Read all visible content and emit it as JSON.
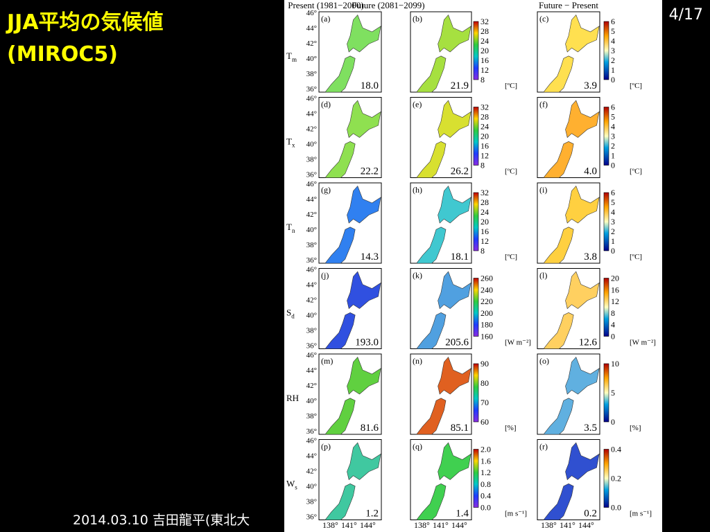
{
  "header": {
    "title": "JJA平均の気候値",
    "subtitle": "(MIROC5)",
    "page": "4/17"
  },
  "footer": "2014.03.10 吉田龍平(東北大",
  "figure": {
    "columns": [
      "Present (1981−2000)",
      "Future (2081−2099)",
      "Future − Present"
    ],
    "lat_labels": [
      "46°",
      "44°",
      "42°",
      "40°",
      "38°",
      "36°"
    ],
    "lon_labels": [
      "138°",
      "141°",
      "144°"
    ],
    "rows": [
      {
        "label": "T",
        "sub": "m",
        "panels": [
          {
            "letter": "(a)",
            "value": "18.0"
          },
          {
            "letter": "(b)",
            "value": "21.9"
          },
          {
            "letter": "(c)",
            "value": "3.9"
          }
        ],
        "bar1": {
          "ticks": [
            "32",
            "28",
            "24",
            "20",
            "16",
            "12",
            "8"
          ],
          "unit": "[ºC]"
        },
        "bar2": {
          "ticks": [
            "6",
            "5",
            "4",
            "3",
            "2",
            "1",
            "0"
          ],
          "unit": "[ºC]"
        }
      },
      {
        "label": "T",
        "sub": "x",
        "panels": [
          {
            "letter": "(d)",
            "value": "22.2"
          },
          {
            "letter": "(e)",
            "value": "26.2"
          },
          {
            "letter": "(f)",
            "value": "4.0"
          }
        ],
        "bar1": {
          "ticks": [
            "32",
            "28",
            "24",
            "20",
            "16",
            "12",
            "8"
          ],
          "unit": "[ºC]"
        },
        "bar2": {
          "ticks": [
            "6",
            "5",
            "4",
            "3",
            "2",
            "1",
            "0"
          ],
          "unit": "[ºC]"
        }
      },
      {
        "label": "T",
        "sub": "n",
        "panels": [
          {
            "letter": "(g)",
            "value": "14.3"
          },
          {
            "letter": "(h)",
            "value": "18.1"
          },
          {
            "letter": "(i)",
            "value": "3.8"
          }
        ],
        "bar1": {
          "ticks": [
            "32",
            "28",
            "24",
            "20",
            "16",
            "12",
            "8"
          ],
          "unit": "[ºC]"
        },
        "bar2": {
          "ticks": [
            "6",
            "5",
            "4",
            "3",
            "2",
            "1",
            "0"
          ],
          "unit": "[ºC]"
        }
      },
      {
        "label": "S",
        "sub": "d",
        "panels": [
          {
            "letter": "(j)",
            "value": "193.0"
          },
          {
            "letter": "(k)",
            "value": "205.6"
          },
          {
            "letter": "(l)",
            "value": "12.6"
          }
        ],
        "bar1": {
          "ticks": [
            "260",
            "240",
            "220",
            "200",
            "180",
            "160"
          ],
          "unit": "[W m⁻²]"
        },
        "bar2": {
          "ticks": [
            "20",
            "16",
            "12",
            "8",
            "4",
            "0"
          ],
          "unit": "[W m⁻²]"
        }
      },
      {
        "label": "RH",
        "sub": "",
        "panels": [
          {
            "letter": "(m)",
            "value": "81.6"
          },
          {
            "letter": "(n)",
            "value": "85.1"
          },
          {
            "letter": "(o)",
            "value": "3.5"
          }
        ],
        "bar1": {
          "ticks": [
            "90",
            "80",
            "70",
            "60"
          ],
          "unit": "[%]"
        },
        "bar2": {
          "ticks": [
            "10",
            "5",
            "0"
          ],
          "unit": "[%]"
        }
      },
      {
        "label": "W",
        "sub": "s",
        "panels": [
          {
            "letter": "(p)",
            "value": "1.2"
          },
          {
            "letter": "(q)",
            "value": "1.4"
          },
          {
            "letter": "(r)",
            "value": "0.2"
          }
        ],
        "bar1": {
          "ticks": [
            "2.0",
            "1.6",
            "1.2",
            "0.8",
            "0.4",
            "0.0"
          ],
          "unit": "[m s⁻¹]"
        },
        "bar2": {
          "ticks": [
            "0.4",
            "0.2",
            "0.0"
          ],
          "unit": "[m s⁻¹]"
        }
      }
    ]
  }
}
